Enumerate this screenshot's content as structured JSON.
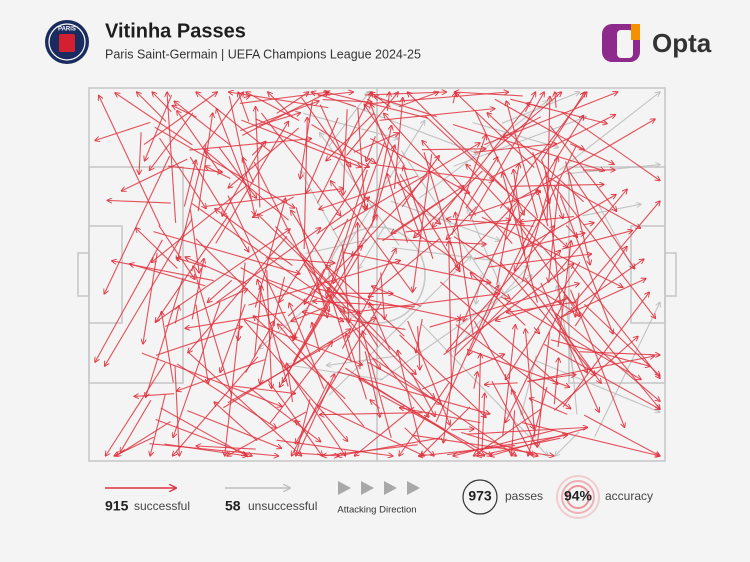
{
  "header": {
    "title": "Vitinha Passes",
    "subtitle": "Paris Saint-Germain | UEFA Champions League 2024-25",
    "club_badge": "PARIS",
    "brand": "Opta"
  },
  "legend": {
    "successful": {
      "count": "915",
      "label": "successful"
    },
    "unsuccessful": {
      "count": "58",
      "label": "unsuccessful"
    },
    "direction": "Attacking Direction"
  },
  "stats": {
    "passes": {
      "value": "973",
      "label": "passes"
    },
    "accuracy": {
      "value": "94%",
      "label": "accuracy"
    }
  }
}
